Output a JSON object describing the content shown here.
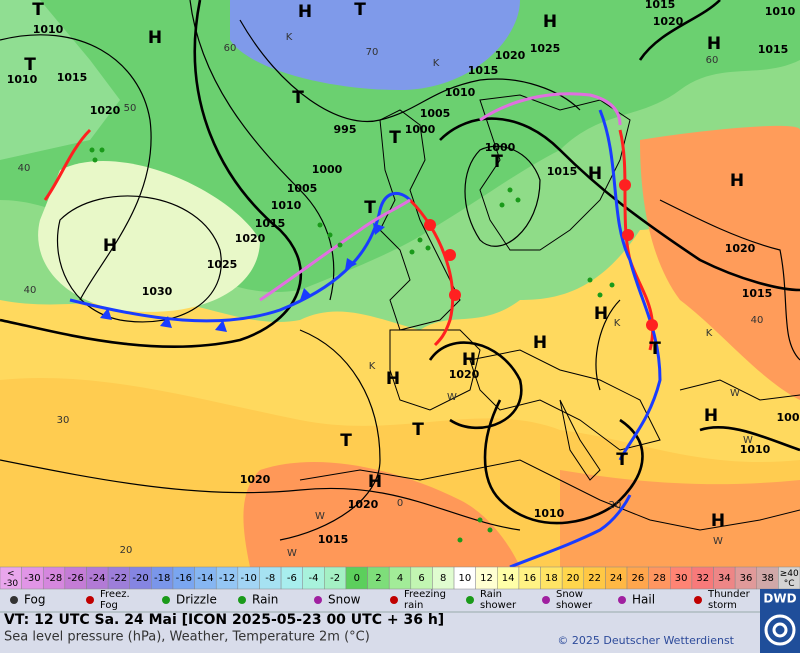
{
  "map": {
    "pressure_centers": [
      "H",
      "T",
      "H",
      "H",
      "H",
      "T",
      "T",
      "T",
      "T",
      "T",
      "H",
      "H",
      "H",
      "T",
      "H",
      "H",
      "H",
      "H",
      "T",
      "T",
      "T",
      "H",
      "T",
      "H",
      "H"
    ],
    "isobar_labels": [
      "1010",
      "1010",
      "1015",
      "1020",
      "995",
      "1000",
      "1005",
      "1010",
      "1015",
      "1020",
      "1025",
      "1030",
      "1000",
      "1005",
      "1010",
      "1015",
      "1020",
      "1025",
      "1000",
      "1015",
      "1015",
      "1020",
      "1010",
      "1015",
      "1020",
      "1015",
      "1020",
      "1020",
      "1020",
      "1010",
      "1015",
      "1010",
      "100"
    ],
    "minor_labels": [
      "60",
      "70",
      "50",
      "40",
      "40",
      "30",
      "20",
      "60",
      "40",
      "20",
      "0",
      "K",
      "K",
      "K",
      "K",
      "W",
      "W",
      "W",
      "W",
      "W",
      "W",
      "K"
    ]
  },
  "color_scale": [
    {
      "label": "<\n-30",
      "color": "#e9a6ec"
    },
    {
      "label": "-30",
      "color": "#e195e6"
    },
    {
      "label": "-28",
      "color": "#d587de"
    },
    {
      "label": "-26",
      "color": "#c47cd6"
    },
    {
      "label": "-24",
      "color": "#b27ad6"
    },
    {
      "label": "-22",
      "color": "#9d7ed9"
    },
    {
      "label": "-20",
      "color": "#8585e2"
    },
    {
      "label": "-18",
      "color": "#7a96ea"
    },
    {
      "label": "-16",
      "color": "#7aa6f0"
    },
    {
      "label": "-14",
      "color": "#86b6f2"
    },
    {
      "label": "-12",
      "color": "#94c6f4"
    },
    {
      "label": "-10",
      "color": "#a2d4f4"
    },
    {
      "label": "-8",
      "color": "#a6e2f2"
    },
    {
      "label": "-6",
      "color": "#a8eeee"
    },
    {
      "label": "-4",
      "color": "#a8f2dc"
    },
    {
      "label": "-2",
      "color": "#a4f0c4"
    },
    {
      "label": "0",
      "color": "#5ccf5c"
    },
    {
      "label": "2",
      "color": "#7ede7a"
    },
    {
      "label": "4",
      "color": "#a2ec98"
    },
    {
      "label": "6",
      "color": "#c2f6b2"
    },
    {
      "label": "8",
      "color": "#e0fcd0"
    },
    {
      "label": "10",
      "color": "#ffffff"
    },
    {
      "label": "12",
      "color": "#ffffd2"
    },
    {
      "label": "14",
      "color": "#ffffa8"
    },
    {
      "label": "16",
      "color": "#fff284"
    },
    {
      "label": "18",
      "color": "#ffe464"
    },
    {
      "label": "20",
      "color": "#ffd64c"
    },
    {
      "label": "22",
      "color": "#ffc844"
    },
    {
      "label": "24",
      "color": "#ffb844"
    },
    {
      "label": "26",
      "color": "#ffa64c"
    },
    {
      "label": "28",
      "color": "#ff9660"
    },
    {
      "label": "30",
      "color": "#ff8474"
    },
    {
      "label": "32",
      "color": "#f87a7a"
    },
    {
      "label": "34",
      "color": "#ee8686"
    },
    {
      "label": "36",
      "color": "#e09a9a"
    },
    {
      "label": "38",
      "color": "#d0a8a8"
    },
    {
      "label": "≥40\n°C",
      "color": "#d4d4d4"
    }
  ],
  "weather_legend": [
    {
      "lines": [
        "Fog"
      ],
      "color": "#333333"
    },
    {
      "lines": [
        "Freez.",
        "Fog"
      ],
      "color": "#c00000"
    },
    {
      "lines": [
        "Drizzle"
      ],
      "color": "#1a9a1a"
    },
    {
      "lines": [
        "Rain"
      ],
      "color": "#1a9a1a"
    },
    {
      "lines": [
        "Snow"
      ],
      "color": "#a020a0"
    },
    {
      "lines": [
        "Freezing",
        "rain"
      ],
      "color": "#c00000"
    },
    {
      "lines": [
        "Rain",
        "shower"
      ],
      "color": "#1a9a1a"
    },
    {
      "lines": [
        "Snow",
        "shower"
      ],
      "color": "#a020a0"
    },
    {
      "lines": [
        "Hail"
      ],
      "color": "#a020a0"
    },
    {
      "lines": [
        "Thunder",
        "storm"
      ],
      "color": "#c00000"
    }
  ],
  "footer": {
    "valid_time": "VT: 12 UTC Sa.  24 Mai [ICON 2025-05-23  00 UTC + 36 h]",
    "description": "Sea level pressure (hPa), Weather, Temperature 2m (°C)",
    "copyright": "© 2025 Deutscher Wetterdienst",
    "logo": "DWD"
  }
}
